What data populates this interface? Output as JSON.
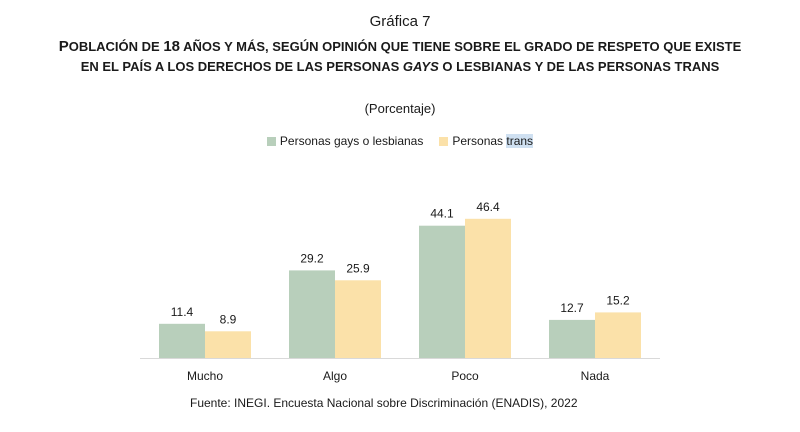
{
  "header": {
    "kicker": "Gráfica 7",
    "title_parts": [
      {
        "text": "P",
        "cls": "big"
      },
      {
        "text": "OBLACIÓN DE ",
        "cls": ""
      },
      {
        "text": "18",
        "cls": "big"
      },
      {
        "text": " AÑOS Y MÁS, SEGÚN OPINIÓN QUE TIENE SOBRE EL GRADO DE RESPETO QUE EXISTE EN EL PAÍS A LOS DERECHOS DE LAS PERSONAS ",
        "cls": ""
      },
      {
        "text": "GAYS",
        "cls": "it"
      },
      {
        "text": " O LESBIANAS Y DE LAS PERSONAS TRANS",
        "cls": ""
      }
    ],
    "subtitle": "(Porcentaje)"
  },
  "legend": {
    "gays_label": "Personas gays o lesbianas",
    "trans_prefix": "Personas ",
    "trans_word": "trans"
  },
  "colors": {
    "gays": "#b8cfbb",
    "trans": "#fbe1a9",
    "axis": "#d9d9d9"
  },
  "chart_data": {
    "type": "bar",
    "title": "Población de 18 años y más, según opinión que tiene sobre el grado de respeto que existe en el país a los derechos de las personas gays o lesbianas y de las personas trans",
    "xlabel": "",
    "ylabel": "Porcentaje",
    "ylim": [
      0,
      50
    ],
    "categories": [
      "Mucho",
      "Algo",
      "Poco",
      "Nada"
    ],
    "series": [
      {
        "name": "Personas gays o lesbianas",
        "values": [
          11.4,
          29.2,
          44.1,
          12.7
        ]
      },
      {
        "name": "Personas trans",
        "values": [
          8.9,
          25.9,
          46.4,
          15.2
        ]
      }
    ],
    "value_labels": [
      [
        "11.4",
        "29.2",
        "44.1",
        "12.7"
      ],
      [
        "8.9",
        "25.9",
        "46.4",
        "15.2"
      ]
    ]
  },
  "footer": {
    "source": "Fuente: INEGI. Encuesta Nacional sobre Discriminación (ENADIS), 2022"
  }
}
